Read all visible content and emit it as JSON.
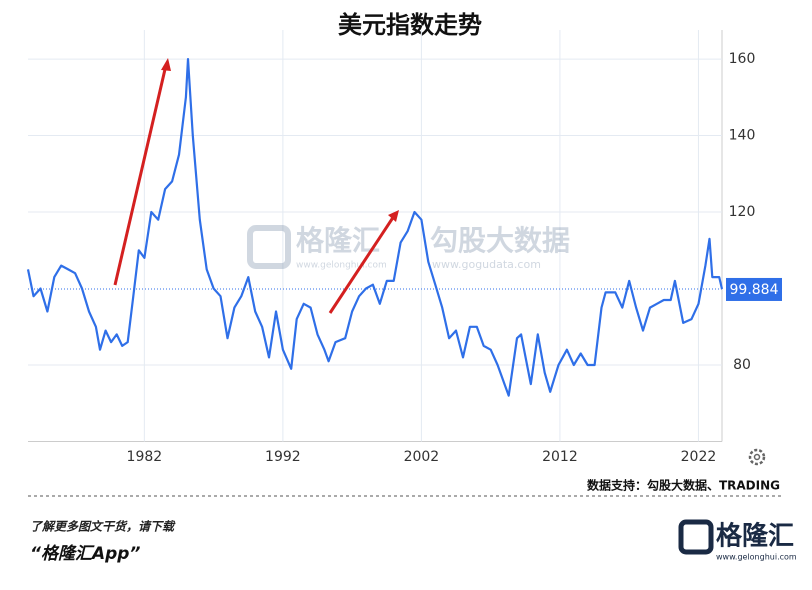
{
  "chart_data": {
    "type": "line",
    "title": "美元指数走势",
    "x": [
      1973.6,
      1974.0,
      1974.5,
      1975.0,
      1975.5,
      1976.0,
      1976.5,
      1977.0,
      1977.5,
      1978.0,
      1978.5,
      1978.8,
      1979.2,
      1979.6,
      1980.0,
      1980.4,
      1980.8,
      1981.2,
      1981.6,
      1982.0,
      1982.5,
      1983.0,
      1983.5,
      1984.0,
      1984.5,
      1985.0,
      1985.15,
      1985.5,
      1986.0,
      1986.5,
      1987.0,
      1987.5,
      1988.0,
      1988.5,
      1989.0,
      1989.5,
      1990.0,
      1990.5,
      1991.0,
      1991.5,
      1992.0,
      1992.6,
      1993.0,
      1993.5,
      1994.0,
      1994.5,
      1995.0,
      1995.3,
      1995.8,
      1996.5,
      1997.0,
      1997.5,
      1998.0,
      1998.5,
      1999.0,
      1999.5,
      2000.0,
      2000.5,
      2001.0,
      2001.5,
      2002.0,
      2002.5,
      2003.0,
      2003.5,
      2004.0,
      2004.5,
      2005.0,
      2005.5,
      2006.0,
      2006.5,
      2007.0,
      2007.5,
      2008.0,
      2008.3,
      2008.9,
      2009.2,
      2009.9,
      2010.4,
      2010.9,
      2011.3,
      2011.9,
      2012.5,
      2013.0,
      2013.5,
      2014.0,
      2014.5,
      2015.0,
      2015.3,
      2016.0,
      2016.5,
      2017.0,
      2017.5,
      2018.0,
      2018.5,
      2019.0,
      2019.5,
      2020.0,
      2020.3,
      2020.9,
      2021.5,
      2022.0,
      2022.5,
      2022.8,
      2023.0,
      2023.5,
      2023.7
    ],
    "values": [
      105,
      98,
      100,
      94,
      103,
      106,
      105,
      104,
      100,
      94,
      90,
      84,
      89,
      86,
      88,
      85,
      86,
      98,
      110,
      108,
      120,
      118,
      126,
      128,
      135,
      150,
      160,
      140,
      118,
      105,
      100,
      98,
      87,
      95,
      98,
      103,
      94,
      90,
      82,
      94,
      84,
      79,
      92,
      96,
      95,
      88,
      84,
      81,
      86,
      87,
      94,
      98,
      100,
      101,
      96,
      102,
      102,
      112,
      115,
      120,
      118,
      107,
      101,
      95,
      87,
      89,
      82,
      90,
      90,
      85,
      84,
      80,
      75,
      72,
      87,
      88,
      75,
      88,
      78,
      73,
      80,
      84,
      80,
      83,
      80,
      80,
      95,
      99,
      99,
      95,
      102,
      95,
      89,
      95,
      96,
      97,
      97,
      102,
      91,
      92,
      96,
      106,
      113,
      103,
      103,
      99.884
    ],
    "color": "#2f6fe8",
    "xlim": [
      1973.6,
      2023.7
    ],
    "ylim": [
      60,
      167.6
    ],
    "xticks": [
      1982,
      1992,
      2002,
      2012,
      2022
    ],
    "yticks": [
      80,
      120,
      140,
      160
    ],
    "grid": true
  },
  "source": "数据支持：勾股大数据、TRADING",
  "watermarks": [
    "格隆汇",
    "www.gelonghui.com",
    "勾股大数据",
    "www.gogudata.com"
  ],
  "footer": {
    "prompt": "了解更多图文干货，请下载",
    "app": "“格隆汇App”",
    "logo": "格隆汇",
    "logo_url": "www.gelonghui.com"
  }
}
